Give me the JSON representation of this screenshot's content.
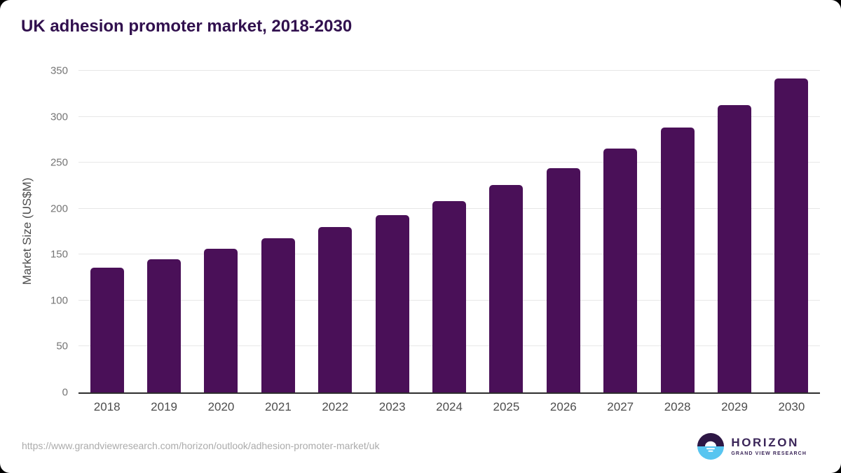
{
  "title": "UK adhesion promoter market, 2018-2030",
  "chart_data": {
    "type": "bar",
    "title": "UK adhesion promoter market, 2018-2030",
    "categories": [
      "2018",
      "2019",
      "2020",
      "2021",
      "2022",
      "2023",
      "2024",
      "2025",
      "2026",
      "2027",
      "2028",
      "2029",
      "2030"
    ],
    "values": [
      136,
      145,
      156,
      168,
      180,
      193,
      208,
      226,
      244,
      265,
      288,
      313,
      342
    ],
    "xlabel": "",
    "ylabel": "Market Size (US$M)",
    "ylim": [
      0,
      350
    ],
    "yticks": [
      0,
      50,
      100,
      150,
      200,
      250,
      300,
      350
    ],
    "grid": "horizontal",
    "legend": "none",
    "bar_color": "#4a1058"
  },
  "colors": {
    "title_text": "#31104e",
    "bar": "#4a1058",
    "gridline": "#e7e7e7",
    "axis_line": "#2e2e2e",
    "tick_text": "#757575",
    "category_text": "#4d4d4d",
    "url_text": "#ababab",
    "logo_purple": "#2e1745",
    "logo_blue": "#58c5f0",
    "logo_text": "#3a2558"
  },
  "footer": {
    "source_url": "https://www.grandviewresearch.com/horizon/outlook/adhesion-promoter-market/uk",
    "logo": {
      "name": "HORIZON",
      "subtitle": "GRAND VIEW RESEARCH",
      "icon": "horizon-sunset-circle-icon"
    }
  }
}
